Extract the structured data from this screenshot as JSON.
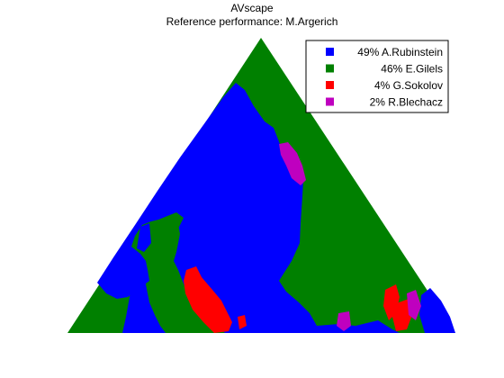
{
  "chart_data": {
    "type": "heatmap",
    "title": "AVscape",
    "subtitle": "Reference performance: M.Argerich",
    "legend": {
      "position": "top-right",
      "entries": [
        {
          "label": "49% A.Rubinstein",
          "color": "#0000ff",
          "percent": 49
        },
        {
          "label": "46% E.Gilels",
          "color": "#008000",
          "percent": 46
        },
        {
          "label": "4% G.Sokolov",
          "color": "#ff0000",
          "percent": 4
        },
        {
          "label": "2% R.Blechacz",
          "color": "#bf00bf",
          "percent": 2
        }
      ]
    },
    "regions": [
      {
        "series": "E.Gilels",
        "color": "#008000",
        "shape": "full triangle background"
      },
      {
        "series": "A.Rubinstein",
        "color": "#0000ff",
        "shape": "large central region"
      },
      {
        "series": "G.Sokolov",
        "color": "#ff0000",
        "shape": "patches near bottom"
      },
      {
        "series": "R.Blechacz",
        "color": "#bf00bf",
        "shape": "small patches near right edge"
      }
    ],
    "grid": false,
    "axes_visible": false
  }
}
